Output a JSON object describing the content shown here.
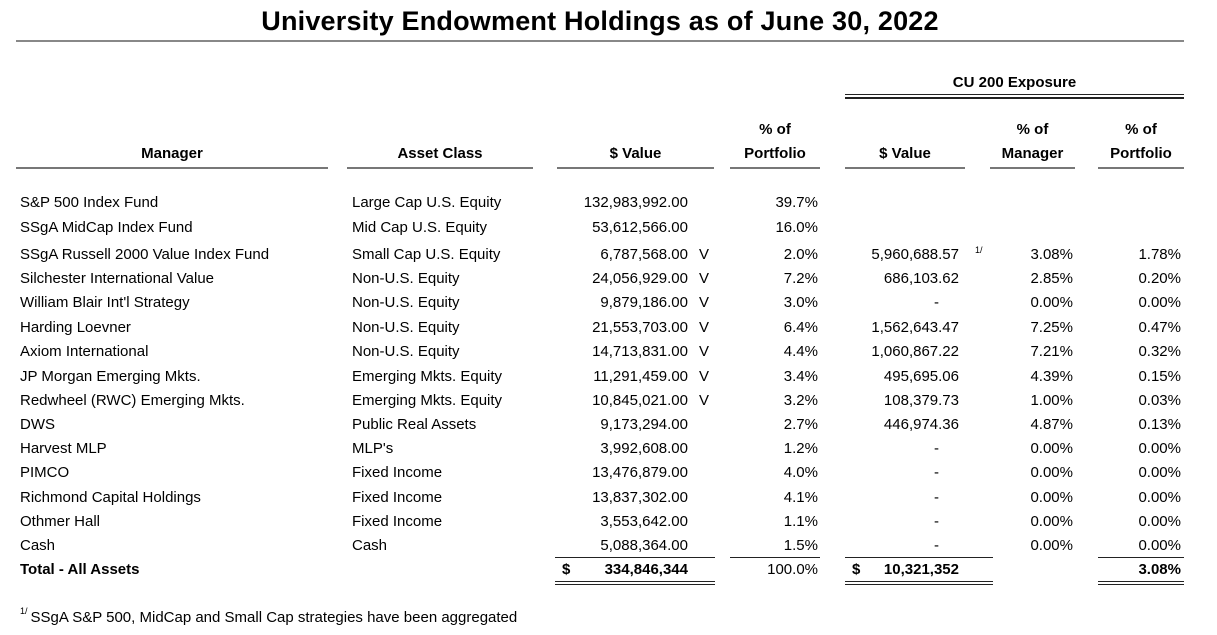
{
  "title": "University Endowment Holdings as of June 30, 2022",
  "group_header": "CU 200 Exposure",
  "headers": {
    "manager": "Manager",
    "asset_class": "Asset Class",
    "value": "$ Value",
    "pct_portfolio_line1": "% of",
    "pct_portfolio_line2": "Portfolio",
    "cu_value": "$ Value",
    "cu_pct_manager_line1": "% of",
    "cu_pct_manager_line2": "Manager",
    "cu_pct_portfolio_line1": "% of",
    "cu_pct_portfolio_line2": "Portfolio"
  },
  "rows": [
    {
      "manager": "S&P 500 Index Fund",
      "asset_class": "Large Cap U.S. Equity",
      "value": "132,983,992.00",
      "flag": "",
      "pct": "39.7%",
      "cu_value": "",
      "footnote": "",
      "cu_pct_manager": "",
      "cu_pct_portfolio": ""
    },
    {
      "manager": "SSgA MidCap Index Fund",
      "asset_class": "Mid Cap U.S. Equity",
      "value": "53,612,566.00",
      "flag": "",
      "pct": "16.0%",
      "cu_value": "",
      "footnote": "",
      "cu_pct_manager": "",
      "cu_pct_portfolio": ""
    },
    {
      "manager": "SSgA Russell 2000 Value Index Fund",
      "asset_class": "Small Cap U.S. Equity",
      "value": "6,787,568.00",
      "flag": "V",
      "pct": "2.0%",
      "cu_value": "5,960,688.57",
      "footnote": "1/",
      "cu_pct_manager": "3.08%",
      "cu_pct_portfolio": "1.78%"
    },
    {
      "manager": "Silchester International Value",
      "asset_class": "Non-U.S. Equity",
      "value": "24,056,929.00",
      "flag": "V",
      "pct": "7.2%",
      "cu_value": "686,103.62",
      "footnote": "",
      "cu_pct_manager": "2.85%",
      "cu_pct_portfolio": "0.20%"
    },
    {
      "manager": "William Blair Int'l Strategy",
      "asset_class": "Non-U.S. Equity",
      "value": "9,879,186.00",
      "flag": "V",
      "pct": "3.0%",
      "cu_value": "-",
      "footnote": "",
      "cu_pct_manager": "0.00%",
      "cu_pct_portfolio": "0.00%"
    },
    {
      "manager": "Harding Loevner",
      "asset_class": "Non-U.S. Equity",
      "value": "21,553,703.00",
      "flag": "V",
      "pct": "6.4%",
      "cu_value": "1,562,643.47",
      "footnote": "",
      "cu_pct_manager": "7.25%",
      "cu_pct_portfolio": "0.47%"
    },
    {
      "manager": "Axiom International",
      "asset_class": "Non-U.S. Equity",
      "value": "14,713,831.00",
      "flag": "V",
      "pct": "4.4%",
      "cu_value": "1,060,867.22",
      "footnote": "",
      "cu_pct_manager": "7.21%",
      "cu_pct_portfolio": "0.32%"
    },
    {
      "manager": "JP Morgan Emerging Mkts.",
      "asset_class": "Emerging Mkts. Equity",
      "value": "11,291,459.00",
      "flag": "V",
      "pct": "3.4%",
      "cu_value": "495,695.06",
      "footnote": "",
      "cu_pct_manager": "4.39%",
      "cu_pct_portfolio": "0.15%"
    },
    {
      "manager": "Redwheel (RWC) Emerging Mkts.",
      "asset_class": "Emerging Mkts. Equity",
      "value": "10,845,021.00",
      "flag": "V",
      "pct": "3.2%",
      "cu_value": "108,379.73",
      "footnote": "",
      "cu_pct_manager": "1.00%",
      "cu_pct_portfolio": "0.03%"
    },
    {
      "manager": "DWS",
      "asset_class": "Public Real Assets",
      "value": "9,173,294.00",
      "flag": "",
      "pct": "2.7%",
      "cu_value": "446,974.36",
      "footnote": "",
      "cu_pct_manager": "4.87%",
      "cu_pct_portfolio": "0.13%"
    },
    {
      "manager": "Harvest MLP",
      "asset_class": "MLP's",
      "value": "3,992,608.00",
      "flag": "",
      "pct": "1.2%",
      "cu_value": "-",
      "footnote": "",
      "cu_pct_manager": "0.00%",
      "cu_pct_portfolio": "0.00%"
    },
    {
      "manager": "PIMCO",
      "asset_class": "Fixed Income",
      "value": "13,476,879.00",
      "flag": "",
      "pct": "4.0%",
      "cu_value": "-",
      "footnote": "",
      "cu_pct_manager": "0.00%",
      "cu_pct_portfolio": "0.00%"
    },
    {
      "manager": "Richmond Capital Holdings",
      "asset_class": "Fixed Income",
      "value": "13,837,302.00",
      "flag": "",
      "pct": "4.1%",
      "cu_value": "-",
      "footnote": "",
      "cu_pct_manager": "0.00%",
      "cu_pct_portfolio": "0.00%"
    },
    {
      "manager": "Othmer Hall",
      "asset_class": "Fixed Income",
      "value": "3,553,642.00",
      "flag": "",
      "pct": "1.1%",
      "cu_value": "-",
      "footnote": "",
      "cu_pct_manager": "0.00%",
      "cu_pct_portfolio": "0.00%"
    },
    {
      "manager": "Cash",
      "asset_class": "Cash",
      "value": "5,088,364.00",
      "flag": "",
      "pct": "1.5%",
      "cu_value": "-",
      "footnote": "",
      "cu_pct_manager": "0.00%",
      "cu_pct_portfolio": "0.00%"
    }
  ],
  "total": {
    "label": "Total - All Assets",
    "currency_symbol": "$",
    "value": "334,846,344",
    "pct": "100.0%",
    "cu_currency_symbol": "$",
    "cu_value": "10,321,352",
    "cu_pct_portfolio": "3.08%"
  },
  "footnote": {
    "marker": "1/",
    "text": "SSgA S&P 500, MidCap and Small Cap strategies have been aggregated"
  }
}
